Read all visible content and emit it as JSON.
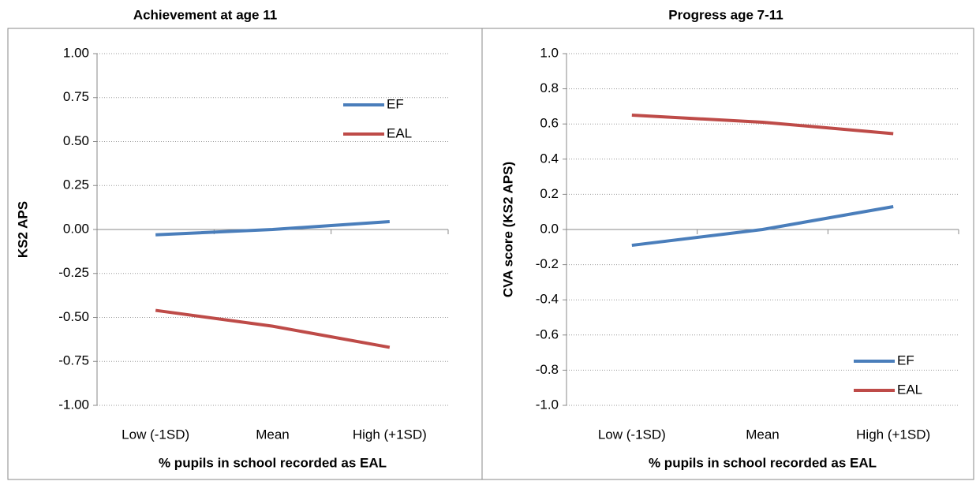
{
  "chart_data": [
    {
      "type": "line",
      "title": "Achievement at age 11",
      "y_label": "KS2 APS",
      "x_label": "% pupils in school recorded as EAL",
      "categories": [
        "Low (-1SD)",
        "Mean",
        "High (+1SD)"
      ],
      "series": [
        {
          "name": "EF",
          "color": "#4a7ebb",
          "values": [
            -0.03,
            0.0,
            0.045
          ]
        },
        {
          "name": "EAL",
          "color": "#be4b48",
          "values": [
            -0.46,
            -0.55,
            -0.67
          ]
        }
      ],
      "ylim": [
        -1,
        1
      ],
      "yticks": [
        {
          "value": 1,
          "label": "1.00"
        },
        0.75,
        {
          "value": 0.5,
          "label": "0.50"
        },
        0.25,
        {
          "value": 0,
          "label": "0.00"
        },
        -0.25,
        {
          "value": -0.5,
          "label": "-0.50"
        },
        -0.75,
        {
          "value": -1,
          "label": "-1.00"
        }
      ],
      "grid": true,
      "legend": "upper right"
    },
    {
      "type": "line",
      "title": "Progress age 7-11",
      "y_label": "CVA score (KS2 APS)",
      "x_label": "% pupils in school recorded as EAL",
      "categories": [
        "Low (-1SD)",
        "Mean",
        "High (+1SD)"
      ],
      "series": [
        {
          "name": "EF",
          "color": "#4a7ebb",
          "values": [
            -0.09,
            0.0,
            0.13
          ]
        },
        {
          "name": "EAL",
          "color": "#be4b48",
          "values": [
            0.65,
            0.61,
            0.545
          ]
        }
      ],
      "ylim": [
        -1,
        1
      ],
      "yticks": [
        {
          "value": 1,
          "label": "1.0"
        },
        0.8,
        0.6,
        0.4,
        0.2,
        {
          "value": 0,
          "label": "0.0"
        },
        -0.2,
        -0.4,
        -0.6,
        -0.8,
        {
          "value": -1,
          "label": "-1.0"
        }
      ],
      "grid": true,
      "legend": "lower right"
    }
  ]
}
